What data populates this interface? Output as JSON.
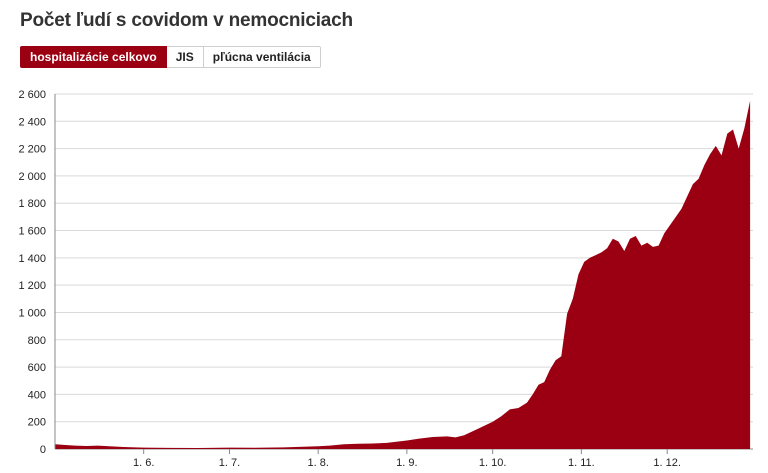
{
  "header": {
    "title": "Počet ľudí s covidom v nemocniciach"
  },
  "tabs": [
    {
      "label": "hospitalizácie celkovo",
      "active": true
    },
    {
      "label": "JIS",
      "active": false
    },
    {
      "label": "pľúcna ventilácia",
      "active": false
    }
  ],
  "colors": {
    "accent": "#9b0012",
    "grid": "#d9d9d9",
    "axis": "#888888"
  },
  "chart_data": {
    "type": "area",
    "title": "Počet ľudí s covidom v nemocniciach",
    "xlabel": "",
    "ylabel": "",
    "ylim": [
      0,
      2600
    ],
    "yticks": [
      0,
      200,
      400,
      600,
      800,
      1000,
      1200,
      1400,
      1600,
      1800,
      2000,
      2200,
      2400,
      2600
    ],
    "ytick_labels": [
      "0",
      "200",
      "400",
      "600",
      "800",
      "1 000",
      "1 200",
      "1 400",
      "1 600",
      "1 800",
      "2 000",
      "2 200",
      "2 400",
      "2 600"
    ],
    "xlim": [
      "2020-05-01",
      "2020-12-31"
    ],
    "xticks": [
      {
        "date": "2020-06-01",
        "label": "1. 6."
      },
      {
        "date": "2020-07-01",
        "label": "1. 7."
      },
      {
        "date": "2020-08-01",
        "label": "1. 8."
      },
      {
        "date": "2020-09-01",
        "label": "1. 9."
      },
      {
        "date": "2020-10-01",
        "label": "1. 10."
      },
      {
        "date": "2020-11-01",
        "label": "1. 11."
      },
      {
        "date": "2020-12-01",
        "label": "1. 12."
      }
    ],
    "grid": true,
    "series": [
      {
        "color": "#9b0012",
        "points": [
          [
            "2020-05-01",
            35
          ],
          [
            "2020-05-04",
            30
          ],
          [
            "2020-05-08",
            25
          ],
          [
            "2020-05-12",
            22
          ],
          [
            "2020-05-16",
            25
          ],
          [
            "2020-05-20",
            20
          ],
          [
            "2020-05-25",
            15
          ],
          [
            "2020-06-01",
            10
          ],
          [
            "2020-06-10",
            8
          ],
          [
            "2020-06-20",
            7
          ],
          [
            "2020-07-01",
            10
          ],
          [
            "2020-07-10",
            9
          ],
          [
            "2020-07-20",
            12
          ],
          [
            "2020-08-01",
            20
          ],
          [
            "2020-08-05",
            25
          ],
          [
            "2020-08-10",
            35
          ],
          [
            "2020-08-15",
            38
          ],
          [
            "2020-08-20",
            40
          ],
          [
            "2020-08-25",
            45
          ],
          [
            "2020-08-29",
            55
          ],
          [
            "2020-09-01",
            62
          ],
          [
            "2020-09-05",
            75
          ],
          [
            "2020-09-10",
            88
          ],
          [
            "2020-09-15",
            92
          ],
          [
            "2020-09-18",
            85
          ],
          [
            "2020-09-21",
            100
          ],
          [
            "2020-09-24",
            130
          ],
          [
            "2020-09-27",
            160
          ],
          [
            "2020-10-01",
            200
          ],
          [
            "2020-10-04",
            240
          ],
          [
            "2020-10-07",
            290
          ],
          [
            "2020-10-10",
            300
          ],
          [
            "2020-10-13",
            340
          ],
          [
            "2020-10-15",
            400
          ],
          [
            "2020-10-17",
            470
          ],
          [
            "2020-10-19",
            490
          ],
          [
            "2020-10-21",
            580
          ],
          [
            "2020-10-23",
            650
          ],
          [
            "2020-10-25",
            680
          ],
          [
            "2020-10-27",
            990
          ],
          [
            "2020-10-29",
            1100
          ],
          [
            "2020-10-31",
            1280
          ],
          [
            "2020-11-02",
            1370
          ],
          [
            "2020-11-04",
            1400
          ],
          [
            "2020-11-06",
            1420
          ],
          [
            "2020-11-08",
            1440
          ],
          [
            "2020-11-10",
            1470
          ],
          [
            "2020-11-12",
            1540
          ],
          [
            "2020-11-14",
            1520
          ],
          [
            "2020-11-16",
            1450
          ],
          [
            "2020-11-18",
            1540
          ],
          [
            "2020-11-20",
            1560
          ],
          [
            "2020-11-22",
            1490
          ],
          [
            "2020-11-24",
            1510
          ],
          [
            "2020-11-26",
            1480
          ],
          [
            "2020-11-28",
            1490
          ],
          [
            "2020-11-30",
            1580
          ],
          [
            "2020-12-02",
            1640
          ],
          [
            "2020-12-04",
            1700
          ],
          [
            "2020-12-06",
            1760
          ],
          [
            "2020-12-08",
            1850
          ],
          [
            "2020-12-10",
            1940
          ],
          [
            "2020-12-12",
            1980
          ],
          [
            "2020-12-14",
            2080
          ],
          [
            "2020-12-16",
            2160
          ],
          [
            "2020-12-18",
            2220
          ],
          [
            "2020-12-20",
            2150
          ],
          [
            "2020-12-22",
            2310
          ],
          [
            "2020-12-24",
            2340
          ],
          [
            "2020-12-26",
            2200
          ],
          [
            "2020-12-28",
            2350
          ],
          [
            "2020-12-30",
            2550
          ]
        ]
      }
    ]
  }
}
